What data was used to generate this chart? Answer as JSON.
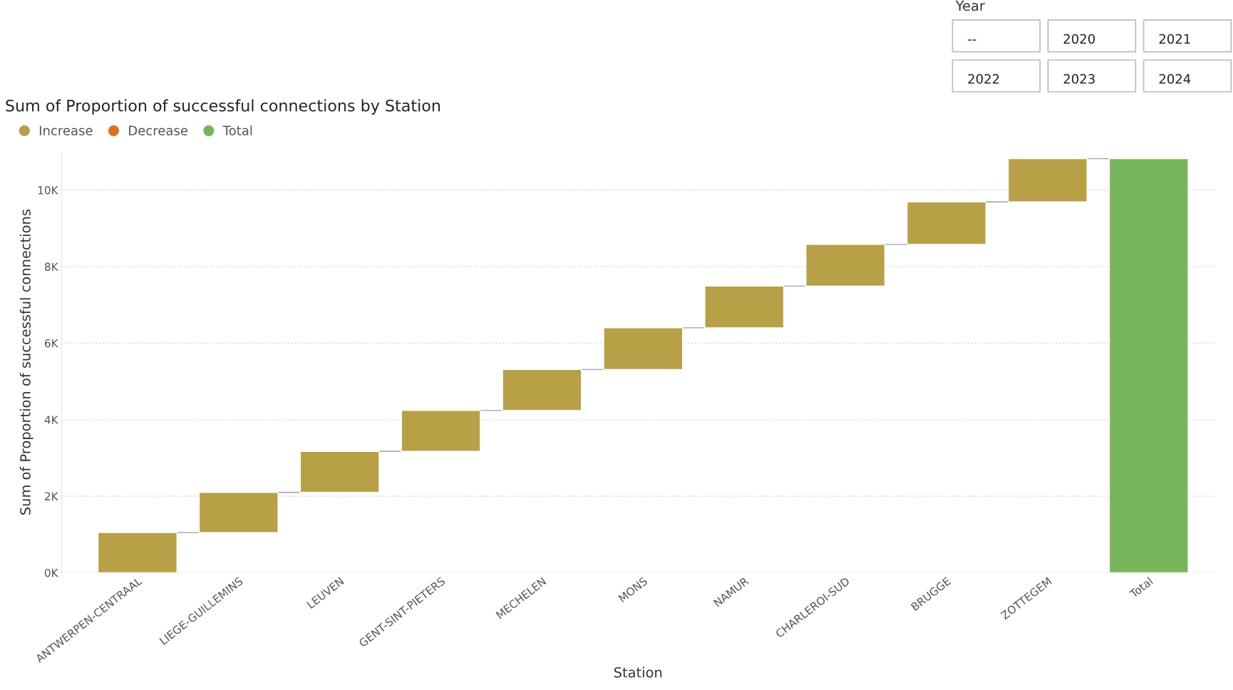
{
  "chart_data": {
    "type": "bar",
    "title": "Sum of Proportion of successful connections by Station",
    "xlabel": "Station",
    "ylabel": "Sum of Proportion of successful connections",
    "categories": [
      "ANTWERPEN-CENTRAAL",
      "LIEGE-GUILLEMINS",
      "LEUVEN",
      "GENT-SINT-PIETERS",
      "MECHELEN",
      "MONS",
      "NAMUR",
      "CHARLEROI-SUD",
      "BRUGGE",
      "ZOTTEGEM",
      "Total"
    ],
    "series": [
      {
        "name": "Increase",
        "color": "#b8a046",
        "values": [
          1050,
          1050,
          1070,
          1070,
          1070,
          1090,
          1090,
          1090,
          1110,
          1130,
          null
        ],
        "base": [
          0,
          1050,
          2100,
          3170,
          4240,
          5310,
          6400,
          7490,
          8580,
          9690,
          null
        ]
      },
      {
        "name": "Decrease",
        "color": "#e0701e",
        "values": [
          null,
          null,
          null,
          null,
          null,
          null,
          null,
          null,
          null,
          null,
          null
        ]
      },
      {
        "name": "Total",
        "color": "#77b55a",
        "values": [
          null,
          null,
          null,
          null,
          null,
          null,
          null,
          null,
          null,
          null,
          10820
        ],
        "base": [
          null,
          null,
          null,
          null,
          null,
          null,
          null,
          null,
          null,
          null,
          0
        ]
      }
    ],
    "ylim": [
      0,
      11000
    ],
    "yticks": [
      {
        "value": 0,
        "label": "0K"
      },
      {
        "value": 2000,
        "label": "2K"
      },
      {
        "value": 4000,
        "label": "4K"
      },
      {
        "value": 6000,
        "label": "6K"
      },
      {
        "value": 8000,
        "label": "8K"
      },
      {
        "value": 10000,
        "label": "10K"
      }
    ],
    "grid": "y",
    "legend": "top left",
    "annotations": [
      "Year",
      "--",
      "2020",
      "2021",
      "2022",
      "2023",
      "2024"
    ]
  }
}
